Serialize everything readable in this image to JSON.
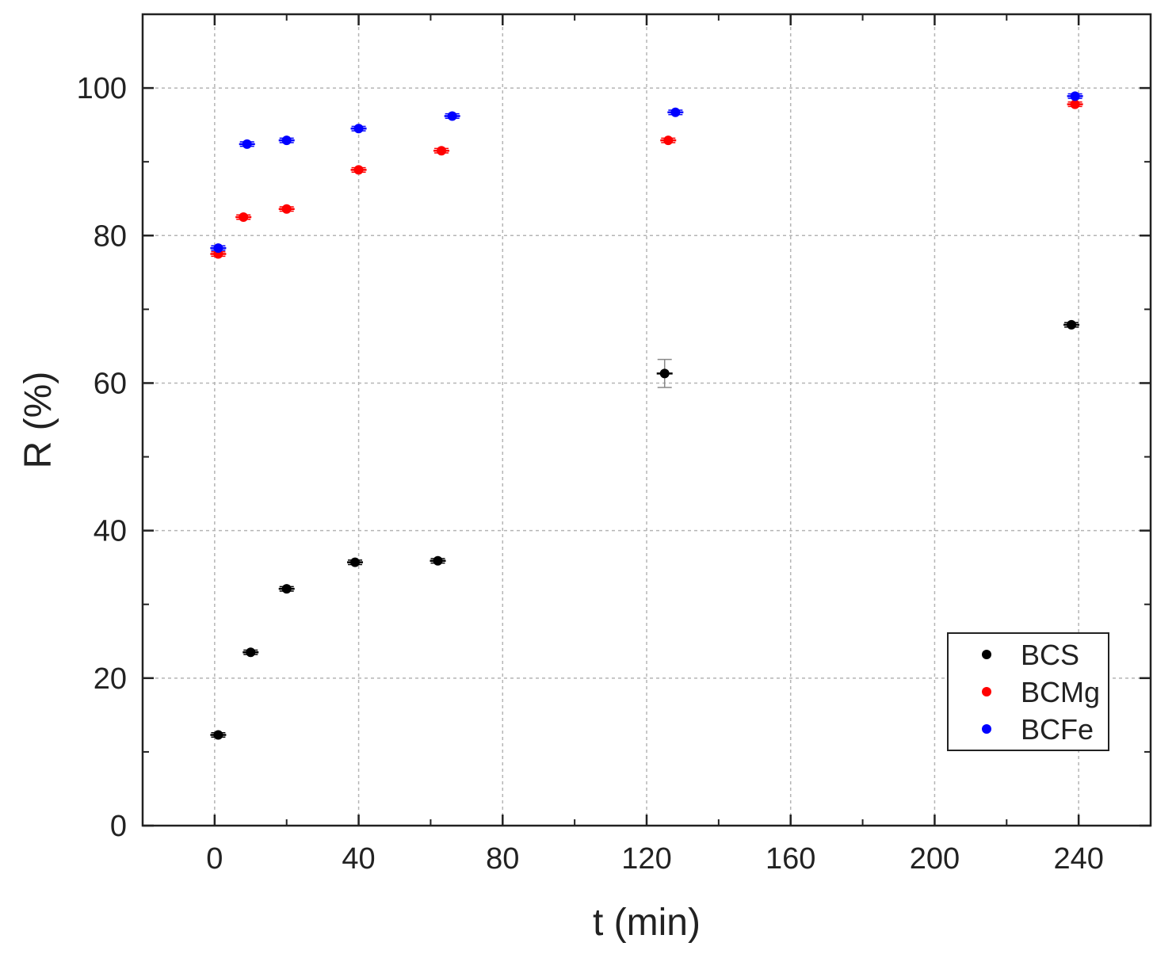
{
  "chart_data": {
    "type": "scatter",
    "title": "",
    "xlabel": "t (min)",
    "ylabel": "R (%)",
    "xlim": [
      -20,
      260
    ],
    "ylim": [
      0,
      110
    ],
    "xticks": [
      0,
      40,
      80,
      120,
      160,
      200,
      240
    ],
    "yticks": [
      0,
      20,
      40,
      60,
      80,
      100
    ],
    "grid": true,
    "legend_position": "bottom-right",
    "series": [
      {
        "name": "BCS",
        "color": "#000000",
        "points": [
          {
            "x": 1,
            "y": 12.3,
            "err": 0.3
          },
          {
            "x": 10,
            "y": 23.5,
            "err": 0.3
          },
          {
            "x": 20,
            "y": 32.1,
            "err": 0.3
          },
          {
            "x": 39,
            "y": 35.7,
            "err": 0.3
          },
          {
            "x": 62,
            "y": 35.9,
            "err": 0.3
          },
          {
            "x": 125,
            "y": 61.3,
            "err": 1.9
          },
          {
            "x": 238,
            "y": 67.9,
            "err": 0.3
          }
        ]
      },
      {
        "name": "BCMg",
        "color": "#ff0000",
        "points": [
          {
            "x": 1,
            "y": 77.5,
            "err": 0.3
          },
          {
            "x": 8,
            "y": 82.5,
            "err": 0.3
          },
          {
            "x": 20,
            "y": 83.6,
            "err": 0.3
          },
          {
            "x": 40,
            "y": 88.9,
            "err": 0.3
          },
          {
            "x": 63,
            "y": 91.5,
            "err": 0.3
          },
          {
            "x": 126,
            "y": 92.9,
            "err": 0.3
          },
          {
            "x": 239,
            "y": 97.8,
            "err": 0.3
          }
        ]
      },
      {
        "name": "BCFe",
        "color": "#0000ff",
        "points": [
          {
            "x": 1,
            "y": 78.3,
            "err": 0.3
          },
          {
            "x": 9,
            "y": 92.4,
            "err": 0.3
          },
          {
            "x": 20,
            "y": 92.9,
            "err": 0.3
          },
          {
            "x": 40,
            "y": 94.5,
            "err": 0.3
          },
          {
            "x": 66,
            "y": 96.2,
            "err": 0.3
          },
          {
            "x": 128,
            "y": 96.7,
            "err": 0.3
          },
          {
            "x": 239,
            "y": 98.9,
            "err": 0.3
          }
        ]
      }
    ]
  }
}
